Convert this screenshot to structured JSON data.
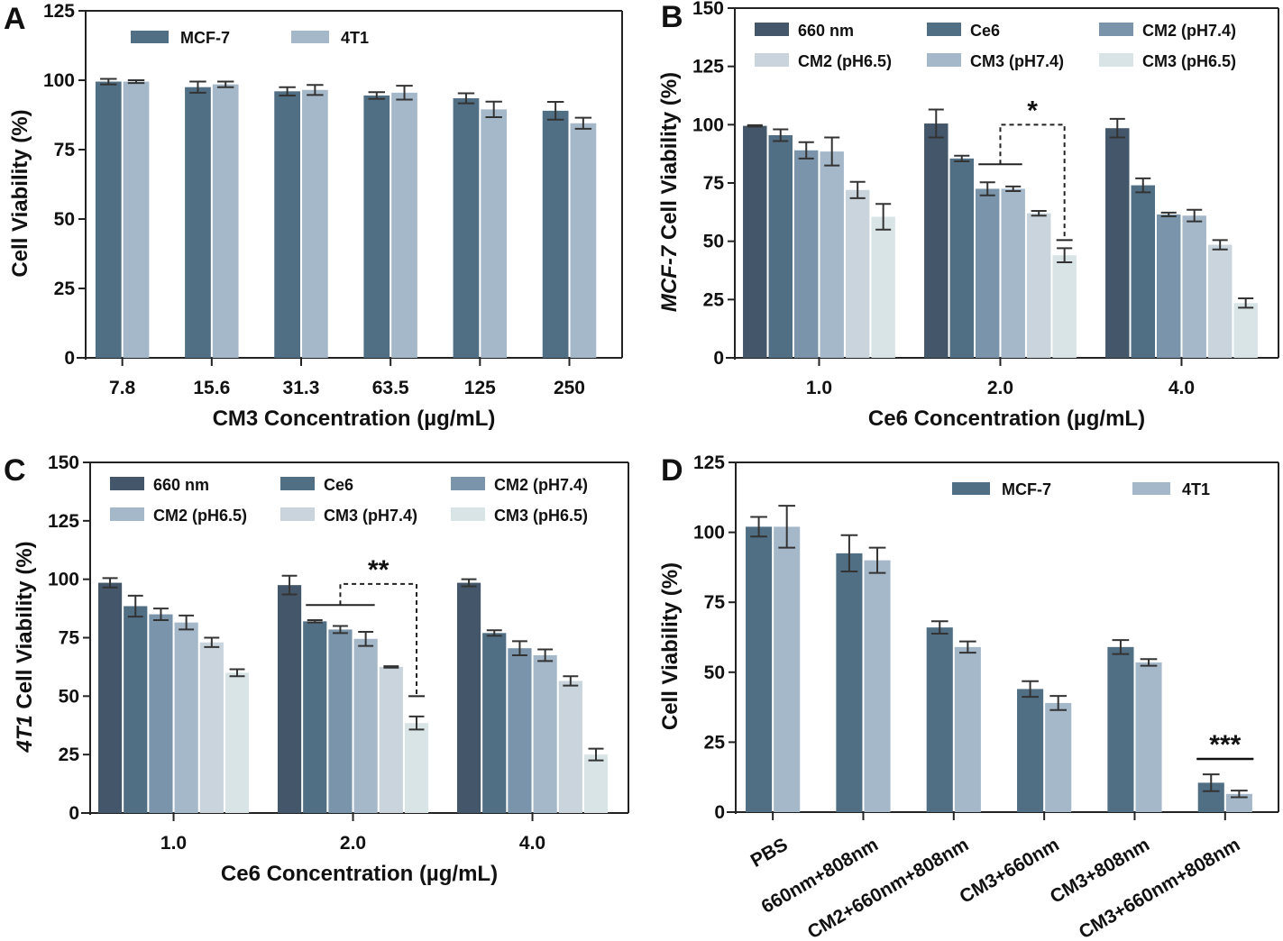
{
  "figure": {
    "panels": [
      "A",
      "B",
      "C",
      "D"
    ]
  },
  "chart_data": [
    {
      "panel": "A",
      "type": "bar",
      "title": "",
      "xlabel": "CM3 Concentration (µg/mL)",
      "ylabel": "Cell Viability (%)",
      "ylabel_italic_prefix": "",
      "ylim": [
        0,
        125
      ],
      "yticks": [
        0,
        25,
        50,
        75,
        100,
        125
      ],
      "categories": [
        "7.8",
        "15.6",
        "31.3",
        "63.5",
        "125",
        "250"
      ],
      "legend_position": "top-left",
      "legend_columns": 2,
      "grid": false,
      "series": [
        {
          "name": "MCF-7",
          "color": "#506e84",
          "values": [
            99.5,
            97.5,
            96,
            94.5,
            93.5,
            89
          ],
          "errors": [
            1.0,
            2.0,
            1.5,
            1.2,
            1.8,
            3.2
          ]
        },
        {
          "name": "4T1",
          "color": "#a5b8ca",
          "values": [
            99.5,
            98.5,
            96.5,
            95.5,
            89.5,
            84.5
          ],
          "errors": [
            0.5,
            1.0,
            1.8,
            2.5,
            2.8,
            2.0
          ]
        }
      ],
      "annotations": []
    },
    {
      "panel": "B",
      "type": "bar",
      "title": "",
      "xlabel": "Ce6 Concentration (µg/mL)",
      "ylabel": "Cell Viability (%)",
      "ylabel_italic_prefix": "MCF-7",
      "ylim": [
        0,
        150
      ],
      "yticks": [
        0,
        25,
        50,
        75,
        100,
        125,
        150
      ],
      "categories": [
        "1.0",
        "2.0",
        "4.0"
      ],
      "legend_position": "top",
      "legend_columns": 3,
      "grid": false,
      "legend_entries": [
        {
          "name": "660 nm",
          "color": "#44566a"
        },
        {
          "name": "Ce6",
          "color": "#506e84"
        },
        {
          "name": "CM2 (pH7.4)",
          "color": "#7a95ab"
        },
        {
          "name": "CM2 (pH6.5)",
          "color": "#c9d4dc"
        },
        {
          "name": "CM3 (pH7.4)",
          "color": "#a5b8ca"
        },
        {
          "name": "CM3 (pH6.5)",
          "color": "#d9e4e7"
        }
      ],
      "series": [
        {
          "name": "660 nm",
          "color": "#44566a",
          "values": [
            99.5,
            100.5,
            98.5
          ],
          "errors": [
            0.3,
            6.0,
            4.0
          ]
        },
        {
          "name": "Ce6",
          "color": "#506e84",
          "values": [
            95.5,
            85.5,
            74
          ],
          "errors": [
            2.5,
            1.2,
            3.0
          ]
        },
        {
          "name": "CM2 (pH7.4)",
          "color": "#7a95ab",
          "values": [
            89,
            72.5,
            61.5
          ],
          "errors": [
            3.5,
            2.8,
            0.8
          ]
        },
        {
          "name": "CM3 (pH7.4)",
          "color": "#a5b8ca",
          "values": [
            88.5,
            72.5,
            61
          ],
          "errors": [
            6.0,
            1.0,
            2.5
          ]
        },
        {
          "name": "CM2 (pH6.5)",
          "color": "#c9d4dc",
          "values": [
            72,
            62,
            48.5
          ],
          "errors": [
            3.5,
            1.0,
            2.0
          ]
        },
        {
          "name": "CM3 (pH6.5)",
          "color": "#d9e4e7",
          "values": [
            60.5,
            44,
            23.5
          ],
          "errors": [
            5.5,
            3.0,
            2.0
          ]
        }
      ],
      "annotations": [
        {
          "type": "bracket",
          "group": "2.0",
          "from_bars": [
            2,
            3
          ],
          "to_bar": 5,
          "y": 100,
          "left_bar_y": 83,
          "right_bar_y": 50.5,
          "label": "*"
        }
      ]
    },
    {
      "panel": "C",
      "type": "bar",
      "title": "",
      "xlabel": "Ce6 Concentration (µg/mL)",
      "ylabel": "Cell Viability (%)",
      "ylabel_italic_prefix": "4T1",
      "ylim": [
        0,
        150
      ],
      "yticks": [
        0,
        25,
        50,
        75,
        100,
        125,
        150
      ],
      "categories": [
        "1.0",
        "2.0",
        "4.0"
      ],
      "legend_position": "top",
      "legend_columns": 3,
      "grid": false,
      "legend_entries": [
        {
          "name": "660 nm",
          "color": "#44566a"
        },
        {
          "name": "Ce6",
          "color": "#506e84"
        },
        {
          "name": "CM2 (pH7.4)",
          "color": "#7a95ab"
        },
        {
          "name": "CM2 (pH6.5)",
          "color": "#a5b8ca"
        },
        {
          "name": "CM3 (pH7.4)",
          "color": "#c9d4dc"
        },
        {
          "name": "CM3 (pH6.5)",
          "color": "#d9e4e7"
        }
      ],
      "series": [
        {
          "name": "660 nm",
          "color": "#44566a",
          "values": [
            98.5,
            97.5,
            98.5
          ],
          "errors": [
            2.0,
            4.0,
            1.5
          ]
        },
        {
          "name": "Ce6",
          "color": "#506e84",
          "values": [
            88.5,
            82,
            77
          ],
          "errors": [
            4.5,
            0.5,
            1.2
          ]
        },
        {
          "name": "CM2 (pH7.4)",
          "color": "#7a95ab",
          "values": [
            85,
            78.5,
            70.5
          ],
          "errors": [
            2.5,
            1.5,
            3.0
          ]
        },
        {
          "name": "CM2 (pH6.5)",
          "color": "#a5b8ca",
          "values": [
            81.5,
            74.5,
            67.5
          ],
          "errors": [
            3.0,
            3.0,
            2.5
          ]
        },
        {
          "name": "CM3 (pH7.4)",
          "color": "#c9d4dc",
          "values": [
            73,
            62.5,
            56.5
          ],
          "errors": [
            2.0,
            0.3,
            2.0
          ]
        },
        {
          "name": "CM3 (pH6.5)",
          "color": "#d9e4e7",
          "values": [
            60,
            38.5,
            25
          ],
          "errors": [
            1.5,
            2.8,
            2.5
          ]
        }
      ],
      "annotations": [
        {
          "type": "bracket",
          "group": "2.0",
          "from_bars": [
            1,
            3
          ],
          "to_bar": 5,
          "y": 98,
          "left_bar_y": 89,
          "right_bar_y": 50,
          "label": "**"
        }
      ]
    },
    {
      "panel": "D",
      "type": "bar",
      "title": "",
      "xlabel": "",
      "ylabel": "Cell Viability (%)",
      "ylabel_italic_prefix": "",
      "ylim": [
        0,
        125
      ],
      "yticks": [
        0,
        25,
        50,
        75,
        100,
        125
      ],
      "categories": [
        "PBS",
        "660nm+808nm",
        "CM2+660nm+808nm",
        "CM3+660nm",
        "CM3+808nm",
        "CM3+660nm+808nm"
      ],
      "category_label_rotation": -30,
      "legend_position": "top-right",
      "legend_columns": 2,
      "grid": false,
      "series": [
        {
          "name": "MCF-7",
          "color": "#506e84",
          "values": [
            102,
            92.5,
            66,
            44,
            59,
            10.5
          ],
          "errors": [
            3.5,
            6.5,
            2.2,
            2.8,
            2.5,
            3.0
          ]
        },
        {
          "name": "4T1",
          "color": "#a5b8ca",
          "values": [
            102,
            90,
            59,
            39,
            53.5,
            6.5
          ],
          "errors": [
            7.5,
            4.5,
            2.0,
            2.5,
            1.2,
            1.2
          ]
        }
      ],
      "annotations": [
        {
          "type": "line",
          "group": "CM3+660nm+808nm",
          "y": 19,
          "label": "***"
        }
      ]
    }
  ]
}
